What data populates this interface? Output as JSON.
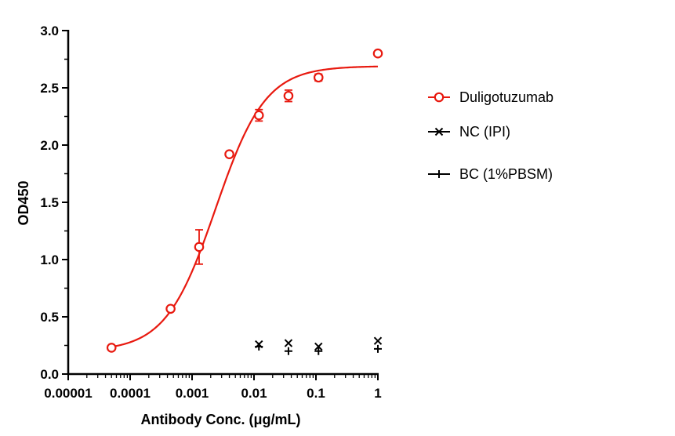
{
  "chart_data": {
    "type": "scatter",
    "xlabel": "Antibody Conc. (μg/mL)",
    "ylabel": "OD450",
    "x_scale": "log",
    "xlim": [
      1e-05,
      1
    ],
    "ylim": [
      0,
      3.0
    ],
    "x_ticks": [
      {
        "value": 1e-05,
        "label": "0.00001"
      },
      {
        "value": 0.0001,
        "label": "0.0001"
      },
      {
        "value": 0.001,
        "label": "0.001"
      },
      {
        "value": 0.01,
        "label": "0.01"
      },
      {
        "value": 0.1,
        "label": "0.1"
      },
      {
        "value": 1,
        "label": "1"
      }
    ],
    "y_ticks": [
      {
        "value": 0,
        "label": "0.0"
      },
      {
        "value": 0.5,
        "label": "0.5"
      },
      {
        "value": 1.0,
        "label": "1.0"
      },
      {
        "value": 1.5,
        "label": "1.5"
      },
      {
        "value": 2.0,
        "label": "2.0"
      },
      {
        "value": 2.5,
        "label": "2.5"
      },
      {
        "value": 3.0,
        "label": "3.0"
      }
    ],
    "legend_position": "right",
    "series": [
      {
        "name": "Duligotuzumab",
        "color": "#e8190f",
        "marker": "circle",
        "fit": "4PL",
        "fit_params": {
          "bottom": 0.2,
          "top": 2.69,
          "ec50": 0.0024,
          "hill": 1.08
        },
        "points": [
          {
            "x": 5e-05,
            "y": 0.23,
            "err": 0.01
          },
          {
            "x": 0.00045,
            "y": 0.57,
            "err": 0.02
          },
          {
            "x": 0.0013,
            "y": 1.11,
            "err": 0.15
          },
          {
            "x": 0.004,
            "y": 1.92,
            "err": 0.02
          },
          {
            "x": 0.012,
            "y": 2.26,
            "err": 0.05
          },
          {
            "x": 0.036,
            "y": 2.43,
            "err": 0.05
          },
          {
            "x": 0.11,
            "y": 2.59,
            "err": 0.03
          },
          {
            "x": 1.0,
            "y": 2.8,
            "err": 0.02
          }
        ]
      },
      {
        "name": "NC (IPI)",
        "color": "#000000",
        "marker": "x",
        "points": [
          {
            "x": 0.012,
            "y": 0.26
          },
          {
            "x": 0.036,
            "y": 0.27
          },
          {
            "x": 0.11,
            "y": 0.24
          },
          {
            "x": 1.0,
            "y": 0.29
          }
        ]
      },
      {
        "name": "BC (1%PBSM)",
        "color": "#000000",
        "marker": "plus",
        "points": [
          {
            "x": 0.012,
            "y": 0.24
          },
          {
            "x": 0.036,
            "y": 0.2
          },
          {
            "x": 0.11,
            "y": 0.2
          },
          {
            "x": 1.0,
            "y": 0.22
          }
        ]
      }
    ]
  }
}
